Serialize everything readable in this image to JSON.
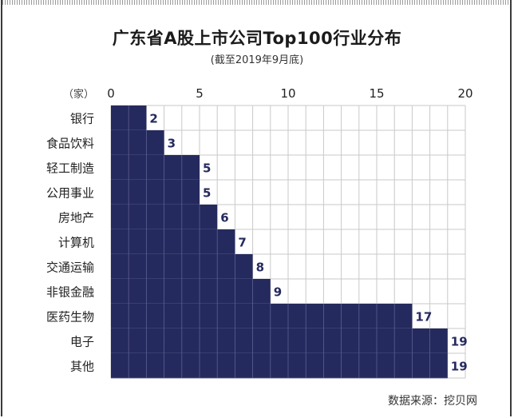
{
  "title": "广东省A股上市公司Top100行业分布",
  "subtitle": "(截至2019年9月底)",
  "source": "数据来源：挖贝网",
  "colors": {
    "bar": "#252a5e",
    "grid": "#c9c9c9",
    "label": "#252a5e"
  },
  "chart_data": {
    "type": "bar",
    "orientation": "horizontal",
    "unit_label": "（家）",
    "categories": [
      "银行",
      "食品饮料",
      "轻工制造",
      "公用事业",
      "房地产",
      "计算机",
      "交通运输",
      "非银金融",
      "医药生物",
      "电子",
      "其他"
    ],
    "values": [
      2,
      3,
      5,
      5,
      6,
      7,
      8,
      9,
      17,
      19,
      19
    ],
    "data_labels": [
      "2",
      "3",
      "5",
      "5",
      "6",
      "7",
      "8",
      "9",
      "17",
      "19",
      "19"
    ],
    "xlim": [
      0,
      20
    ],
    "xticks": [
      0,
      5,
      10,
      15,
      20
    ],
    "xtick_labels": [
      "0",
      "5",
      "10",
      "15",
      "20"
    ],
    "grid": true
  }
}
